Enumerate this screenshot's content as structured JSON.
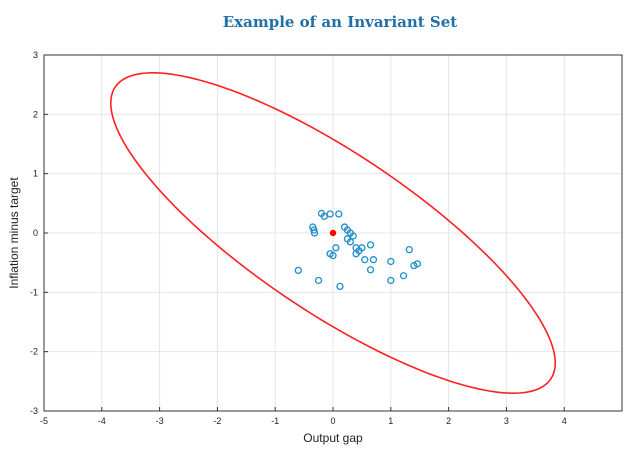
{
  "chart_data": {
    "type": "scatter",
    "title": "Example of an Invariant Set",
    "xlabel": "Output gap",
    "ylabel": "Inflation minus target",
    "xlim": [
      -5,
      5
    ],
    "ylim": [
      -3,
      3
    ],
    "x_ticks": [
      {
        "value": -5,
        "label": "-5"
      },
      {
        "value": -4,
        "label": "-4"
      },
      {
        "value": -3,
        "label": "-3"
      },
      {
        "value": -2,
        "label": "-2"
      },
      {
        "value": -1,
        "label": "-1"
      },
      {
        "value": 0,
        "label": "0"
      },
      {
        "value": 1,
        "label": "1"
      },
      {
        "value": 2,
        "label": "2"
      },
      {
        "value": 3,
        "label": "3"
      },
      {
        "value": 4,
        "label": "4"
      }
    ],
    "y_ticks": [
      {
        "value": -3,
        "label": "-3"
      },
      {
        "value": -2,
        "label": "-2"
      },
      {
        "value": -1,
        "label": "-1"
      },
      {
        "value": 0,
        "label": "0"
      },
      {
        "value": 1,
        "label": "1"
      },
      {
        "value": 2,
        "label": "2"
      },
      {
        "value": 3,
        "label": "3"
      }
    ],
    "grid": true,
    "colors": {
      "title": "#1f6fa8",
      "ellipse": "#ff2020",
      "points": "#1f8fc8",
      "center": "#ff0000"
    },
    "ellipse": {
      "center": [
        0,
        0
      ],
      "semi_axes": [
        4.5,
        1.35
      ],
      "angle_deg": -33
    },
    "center_point": {
      "x": 0,
      "y": 0
    },
    "series": [
      {
        "points": [
          {
            "x": -0.35,
            "y": 0.1
          },
          {
            "x": -0.33,
            "y": 0.05
          },
          {
            "x": -0.32,
            "y": 0.0
          },
          {
            "x": -0.2,
            "y": 0.33
          },
          {
            "x": -0.15,
            "y": 0.28
          },
          {
            "x": -0.05,
            "y": 0.32
          },
          {
            "x": 0.1,
            "y": 0.32
          },
          {
            "x": -0.05,
            "y": -0.35
          },
          {
            "x": 0.0,
            "y": -0.38
          },
          {
            "x": 0.05,
            "y": -0.25
          },
          {
            "x": 0.2,
            "y": 0.1
          },
          {
            "x": 0.25,
            "y": 0.05
          },
          {
            "x": 0.3,
            "y": 0.0
          },
          {
            "x": 0.25,
            "y": -0.1
          },
          {
            "x": 0.3,
            "y": -0.15
          },
          {
            "x": 0.35,
            "y": -0.05
          },
          {
            "x": 0.4,
            "y": -0.25
          },
          {
            "x": 0.45,
            "y": -0.3
          },
          {
            "x": 0.5,
            "y": -0.25
          },
          {
            "x": 0.4,
            "y": -0.35
          },
          {
            "x": 0.55,
            "y": -0.45
          },
          {
            "x": 0.65,
            "y": -0.2
          },
          {
            "x": 0.7,
            "y": -0.45
          },
          {
            "x": 0.65,
            "y": -0.62
          },
          {
            "x": -0.6,
            "y": -0.63
          },
          {
            "x": -0.25,
            "y": -0.8
          },
          {
            "x": 0.12,
            "y": -0.9
          },
          {
            "x": 1.0,
            "y": -0.48
          },
          {
            "x": 1.0,
            "y": -0.8
          },
          {
            "x": 1.22,
            "y": -0.72
          },
          {
            "x": 1.32,
            "y": -0.28
          },
          {
            "x": 1.4,
            "y": -0.55
          },
          {
            "x": 1.46,
            "y": -0.52
          }
        ]
      }
    ]
  }
}
